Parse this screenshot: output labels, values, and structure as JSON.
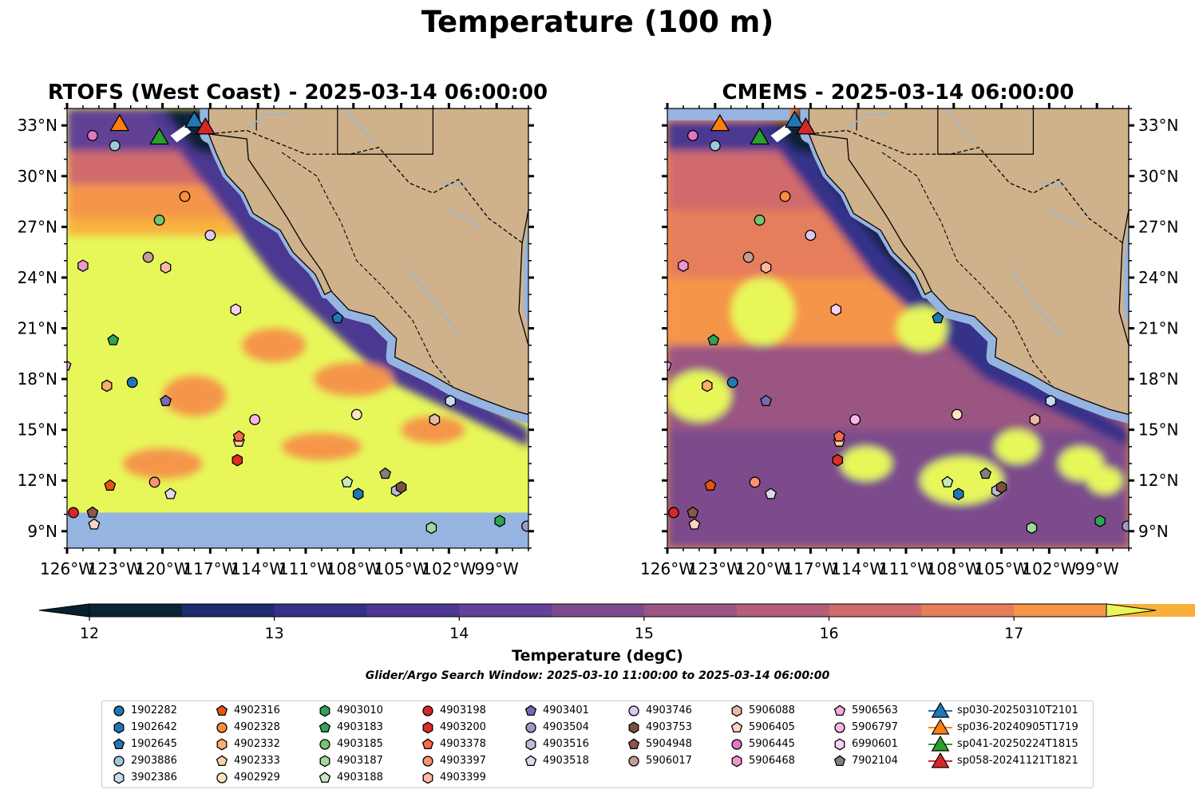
{
  "figure": {
    "suptitle": "Temperature (100 m)",
    "window_text": "Glider/Argo Search Window: 2025-03-10 11:00:00 to 2025-03-14 06:00:00"
  },
  "chart_data": [
    {
      "type": "heatmap",
      "title": "RTOFS (West Coast) - 2025-03-14 06:00:00",
      "xlim": [
        -126,
        -97
      ],
      "ylim": [
        8,
        34
      ],
      "x_ticks": [
        "126°W",
        "123°W",
        "120°W",
        "117°W",
        "114°W",
        "111°W",
        "108°W",
        "105°W",
        "102°W",
        "99°W"
      ],
      "y_ticks": [
        "9°N",
        "12°N",
        "15°N",
        "18°N",
        "21°N",
        "24°N",
        "27°N",
        "30°N",
        "33°N"
      ],
      "grid": false,
      "no_data_south_of_lat": 10.1
    },
    {
      "type": "heatmap",
      "title": "CMEMS - 2025-03-14 06:00:00",
      "xlim": [
        -126,
        -97
      ],
      "ylim": [
        8,
        34
      ],
      "x_ticks": [
        "126°W",
        "123°W",
        "120°W",
        "117°W",
        "114°W",
        "111°W",
        "108°W",
        "105°W",
        "102°W",
        "99°W"
      ],
      "y_ticks": [
        "9°N",
        "12°N",
        "15°N",
        "18°N",
        "21°N",
        "24°N",
        "27°N",
        "30°N",
        "33°N"
      ],
      "grid": false
    }
  ],
  "colorbar": {
    "label": "Temperature (degC)",
    "min": 12,
    "max": 17.5,
    "step": 0.5,
    "tick_labels": [
      "12",
      "13",
      "14",
      "15",
      "16",
      "17"
    ],
    "colors": [
      "#0a2436",
      "#1c2c6c",
      "#35308a",
      "#4b3791",
      "#624196",
      "#7d4b8c",
      "#9a5582",
      "#b55e78",
      "#d06b6c",
      "#e67d5b",
      "#f59549",
      "#f8b03c",
      "#f7c83d"
    ],
    "under_color": "#06202e",
    "over_color": "#e7f75a"
  },
  "map_colors": {
    "land": "#cfb28b",
    "nodata": "#96b4e0",
    "rivers": "#96b4e0"
  },
  "floats": [
    {
      "id": "1902282",
      "marker": "circle",
      "color": "#1f77b4",
      "lon": -121.9,
      "lat": 17.8
    },
    {
      "id": "1902642",
      "marker": "hexagon",
      "color": "#1f77b4",
      "lon": -107.7,
      "lat": 11.2
    },
    {
      "id": "1902645",
      "marker": "pentagon",
      "color": "#1f77b4",
      "lon": -109,
      "lat": 21.6
    },
    {
      "id": "2903886",
      "marker": "circle",
      "color": "#9ecae1",
      "lon": -123,
      "lat": 31.8
    },
    {
      "id": "3902386",
      "marker": "hexagon",
      "color": "#c6dbef",
      "lon": -101.9,
      "lat": 16.7
    },
    {
      "id": "4902316",
      "marker": "pentagon",
      "color": "#e6550d",
      "lon": -123.3,
      "lat": 11.7
    },
    {
      "id": "4902328",
      "marker": "circle",
      "color": "#fd8d3c",
      "lon": -118.6,
      "lat": 28.8
    },
    {
      "id": "4902332",
      "marker": "hexagon",
      "color": "#fdae6b",
      "lon": -123.5,
      "lat": 17.6
    },
    {
      "id": "4902333",
      "marker": "pentagon",
      "color": "#fdd0a2",
      "lon": -115.2,
      "lat": 14.3
    },
    {
      "id": "4902929",
      "marker": "circle",
      "color": "#ffe5c2",
      "lon": -107.8,
      "lat": 15.9
    },
    {
      "id": "4903010",
      "marker": "hexagon",
      "color": "#31a354",
      "lon": -98.8,
      "lat": 9.6
    },
    {
      "id": "4903183",
      "marker": "pentagon",
      "color": "#31a354",
      "lon": -123.1,
      "lat": 20.3
    },
    {
      "id": "4903185",
      "marker": "circle",
      "color": "#74c476",
      "lon": -120.2,
      "lat": 27.4
    },
    {
      "id": "4903187",
      "marker": "hexagon",
      "color": "#a1d99b",
      "lon": -103.1,
      "lat": 9.2
    },
    {
      "id": "4903188",
      "marker": "pentagon",
      "color": "#c7e9c0",
      "lon": -108.4,
      "lat": 11.9
    },
    {
      "id": "4903198",
      "marker": "circle",
      "color": "#d62728",
      "lon": -125.6,
      "lat": 10.1
    },
    {
      "id": "4903200",
      "marker": "hexagon",
      "color": "#de2d26",
      "lon": -115.3,
      "lat": 13.2
    },
    {
      "id": "4903378",
      "marker": "pentagon",
      "color": "#fb6a4a",
      "lon": -115.2,
      "lat": 14.6
    },
    {
      "id": "4903397",
      "marker": "circle",
      "color": "#fc9272",
      "lon": -120.5,
      "lat": 11.9
    },
    {
      "id": "4903399",
      "marker": "hexagon",
      "color": "#fcbba1",
      "lon": -119.8,
      "lat": 24.6
    },
    {
      "id": "4903401",
      "marker": "pentagon",
      "color": "#756bb1",
      "lon": -119.8,
      "lat": 16.7
    },
    {
      "id": "4903504",
      "marker": "circle",
      "color": "#9e9ac8",
      "lon": -97.1,
      "lat": 9.3
    },
    {
      "id": "4903516",
      "marker": "hexagon",
      "color": "#bcbddc",
      "lon": -105.3,
      "lat": 11.4
    },
    {
      "id": "4903518",
      "marker": "pentagon",
      "color": "#dadaeb",
      "lon": -119.5,
      "lat": 11.2
    },
    {
      "id": "4903746",
      "marker": "circle",
      "color": "#dcc7ef",
      "lon": -117,
      "lat": 26.5
    },
    {
      "id": "4903753",
      "marker": "hexagon",
      "color": "#7a4f3e",
      "lon": -105,
      "lat": 11.6
    },
    {
      "id": "5904948",
      "marker": "pentagon",
      "color": "#8c564b",
      "lon": -124.4,
      "lat": 10.1
    },
    {
      "id": "5906017",
      "marker": "circle",
      "color": "#c49c94",
      "lon": -120.9,
      "lat": 25.2
    },
    {
      "id": "5906088",
      "marker": "hexagon",
      "color": "#e7b8a8",
      "lon": -102.9,
      "lat": 15.6
    },
    {
      "id": "5906405",
      "marker": "pentagon",
      "color": "#ffd2c6",
      "lon": -124.3,
      "lat": 9.4
    },
    {
      "id": "5906445",
      "marker": "circle",
      "color": "#e377c2",
      "lon": -124.4,
      "lat": 32.4
    },
    {
      "id": "5906468",
      "marker": "hexagon",
      "color": "#f097cf",
      "lon": -125,
      "lat": 24.7
    },
    {
      "id": "5906563",
      "marker": "pentagon",
      "color": "#f7a8dc",
      "lon": -126.1,
      "lat": 18.8
    },
    {
      "id": "5906797",
      "marker": "circle",
      "color": "#f7b6e8",
      "lon": -114.2,
      "lat": 15.6
    },
    {
      "id": "6990601",
      "marker": "hexagon",
      "color": "#fbd0f1",
      "lon": -115.4,
      "lat": 22.1
    },
    {
      "id": "7902104",
      "marker": "pentagon",
      "color": "#7f7f7f",
      "lon": -106,
      "lat": 12.4
    }
  ],
  "gliders": [
    {
      "id": "sp030-20250310T2101",
      "color": "#1f77b4",
      "lon": -118,
      "lat": 33.3
    },
    {
      "id": "sp036-20240905T1719",
      "color": "#ff7f0e",
      "lon": -122.7,
      "lat": 33.1
    },
    {
      "id": "sp041-20250224T1815",
      "color": "#2ca02c",
      "lon": -120.2,
      "lat": 32.3
    },
    {
      "id": "sp058-20241121T1821",
      "color": "#d62728",
      "lon": -117.3,
      "lat": 32.9
    }
  ],
  "legend": {
    "entries": [
      "1902282",
      "1902642",
      "1902645",
      "2903886",
      "3902386",
      "4902316",
      "4902328",
      "4902332",
      "4902333",
      "4902929",
      "4903010",
      "4903183",
      "4903185",
      "4903187",
      "4903188",
      "4903198",
      "4903200",
      "4903378",
      "4903397",
      "4903399",
      "4903401",
      "4903504",
      "4903516",
      "4903518",
      "4903746",
      "4903753",
      "5904948",
      "5906017",
      "5906088",
      "5906405",
      "5906445",
      "5906468",
      "5906563",
      "5906797",
      "6990601",
      "7902104",
      "sp030-20250310T2101",
      "sp036-20240905T1719",
      "sp041-20250224T1815",
      "sp058-20241121T1821"
    ]
  }
}
